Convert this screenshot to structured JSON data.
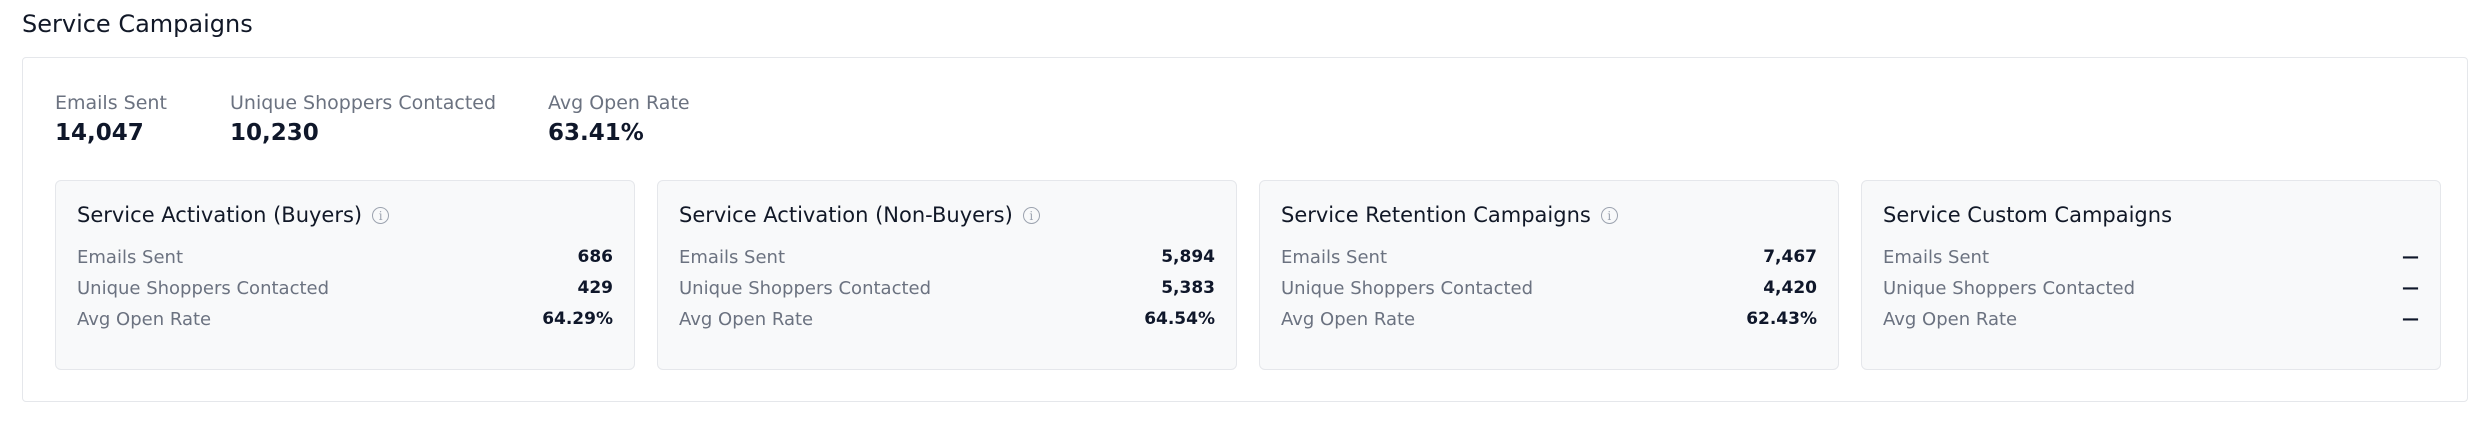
{
  "header": {
    "title": "Service Campaigns"
  },
  "summary": [
    {
      "label": "Emails Sent",
      "value": "14,047"
    },
    {
      "label": "Unique Shoppers Contacted",
      "value": "10,230"
    },
    {
      "label": "Avg Open Rate",
      "value": "63.41%"
    }
  ],
  "cards": [
    {
      "title": "Service Activation (Buyers)",
      "info": true,
      "rows": [
        {
          "label": "Emails Sent",
          "value": "686"
        },
        {
          "label": "Unique Shoppers Contacted",
          "value": "429"
        },
        {
          "label": "Avg Open Rate",
          "value": "64.29%"
        }
      ]
    },
    {
      "title": "Service Activation (Non-Buyers)",
      "info": true,
      "rows": [
        {
          "label": "Emails Sent",
          "value": "5,894"
        },
        {
          "label": "Unique Shoppers Contacted",
          "value": "5,383"
        },
        {
          "label": "Avg Open Rate",
          "value": "64.54%"
        }
      ]
    },
    {
      "title": "Service Retention Campaigns",
      "info": true,
      "rows": [
        {
          "label": "Emails Sent",
          "value": "7,467"
        },
        {
          "label": "Unique Shoppers Contacted",
          "value": "4,420"
        },
        {
          "label": "Avg Open Rate",
          "value": "62.43%"
        }
      ]
    },
    {
      "title": "Service Custom Campaigns",
      "info": false,
      "rows": [
        {
          "label": "Emails Sent",
          "value": "—"
        },
        {
          "label": "Unique Shoppers Contacted",
          "value": "—"
        },
        {
          "label": "Avg Open Rate",
          "value": "—"
        }
      ]
    }
  ]
}
